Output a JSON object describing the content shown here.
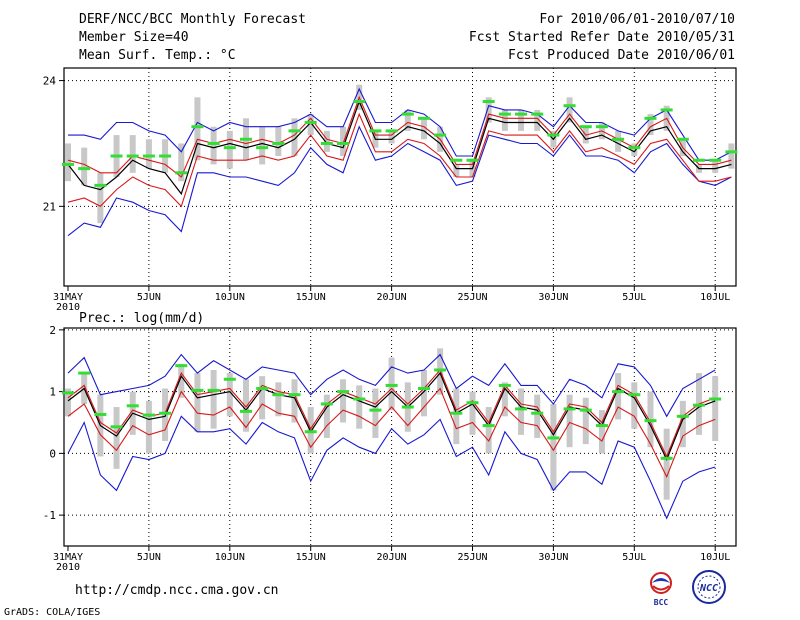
{
  "header": {
    "title": "DERF/NCC/BCC Monthly Forecast",
    "member_size": "Member Size=40",
    "variable": "Mean Surf. Temp.: °C",
    "period": "For 2010/06/01-2010/07/10",
    "started": "Fcst Started Refer Date 2010/05/31",
    "produced": "Fcst Produced Date 2010/06/01"
  },
  "footer": {
    "url": "http://cmdp.ncc.cma.gov.cn",
    "grads": "GrADS: COLA/IGES",
    "logo_bcc": "BCC",
    "logo_ncc": "NCC"
  },
  "colors": {
    "ensemble_mean": "#000000",
    "inner_bounds": "#d81818",
    "outer_bounds": "#1818d0",
    "members": "#c8c8c8",
    "marker": "#33dd33"
  },
  "chart_data": [
    {
      "type": "line",
      "title": "Mean Surf. Temp.: °C",
      "ylabel": "°C",
      "ylim": [
        19.1,
        24.3
      ],
      "yticks": [
        21,
        24
      ],
      "ytick_labels": [
        "21",
        "24"
      ],
      "x_tick_days": [
        0,
        5,
        10,
        15,
        20,
        25,
        30,
        35,
        40
      ],
      "x_tick_labels": [
        "31MAY",
        "5JUN",
        "10JUN",
        "15JUN",
        "20JUN",
        "25JUN",
        "30JUN",
        "5JUL",
        "10JUL"
      ],
      "x_sublabel": "2010",
      "series": [
        {
          "name": "mean",
          "values": [
            22.0,
            21.5,
            21.4,
            21.7,
            22.1,
            21.9,
            21.8,
            21.3,
            22.5,
            22.4,
            22.5,
            22.4,
            22.5,
            22.4,
            22.6,
            23.0,
            22.5,
            22.4,
            23.5,
            22.6,
            22.6,
            22.9,
            22.8,
            22.5,
            21.9,
            21.9,
            23.1,
            23.0,
            23.0,
            23.0,
            22.6,
            23.1,
            22.6,
            22.7,
            22.5,
            22.3,
            22.8,
            22.9,
            22.3,
            21.9,
            21.9,
            22.0
          ]
        },
        {
          "name": "inner_upper",
          "values": [
            22.1,
            22.0,
            21.8,
            21.8,
            22.2,
            22.1,
            22.0,
            21.7,
            22.6,
            22.5,
            22.6,
            22.5,
            22.6,
            22.5,
            22.7,
            23.1,
            22.6,
            22.5,
            23.6,
            22.7,
            22.7,
            23.0,
            22.9,
            22.6,
            22.0,
            22.0,
            23.2,
            23.1,
            23.1,
            23.1,
            22.7,
            23.2,
            22.7,
            22.8,
            22.6,
            22.4,
            22.9,
            23.1,
            22.4,
            22.0,
            22.0,
            22.1
          ]
        },
        {
          "name": "inner_lower",
          "values": [
            21.1,
            21.2,
            21.0,
            21.4,
            21.7,
            21.5,
            21.4,
            21.0,
            22.2,
            22.1,
            22.1,
            22.1,
            22.2,
            22.1,
            22.2,
            22.7,
            22.2,
            22.1,
            23.2,
            22.3,
            22.3,
            22.6,
            22.5,
            22.2,
            21.7,
            21.7,
            22.8,
            22.7,
            22.7,
            22.7,
            22.3,
            22.8,
            22.3,
            22.4,
            22.2,
            22.0,
            22.5,
            22.6,
            22.1,
            21.6,
            21.6,
            21.7
          ]
        },
        {
          "name": "outer_upper",
          "values": [
            22.7,
            22.7,
            22.6,
            23.0,
            23.0,
            22.8,
            22.7,
            22.3,
            23.0,
            22.8,
            23.0,
            22.9,
            22.9,
            22.9,
            23.0,
            23.2,
            22.9,
            22.9,
            23.8,
            23.0,
            23.0,
            23.3,
            23.2,
            22.9,
            22.2,
            22.2,
            23.4,
            23.3,
            23.3,
            23.2,
            22.9,
            23.4,
            23.0,
            23.0,
            22.8,
            22.7,
            23.1,
            23.3,
            22.7,
            22.1,
            22.1,
            22.3
          ]
        },
        {
          "name": "outer_lower",
          "values": [
            20.3,
            20.6,
            20.5,
            21.2,
            21.1,
            20.9,
            20.8,
            20.4,
            21.8,
            21.8,
            21.7,
            21.7,
            21.6,
            21.5,
            21.8,
            22.4,
            22.0,
            21.8,
            22.9,
            22.1,
            22.2,
            22.5,
            22.3,
            22.1,
            21.5,
            21.6,
            22.7,
            22.6,
            22.5,
            22.5,
            22.2,
            22.7,
            22.2,
            22.2,
            22.1,
            21.8,
            22.3,
            22.5,
            22.0,
            21.6,
            21.5,
            21.7
          ]
        }
      ],
      "member_range": [
        [
          21.6,
          22.5
        ],
        [
          21.5,
          22.4
        ],
        [
          20.6,
          21.8
        ],
        [
          21.7,
          22.7
        ],
        [
          21.8,
          22.7
        ],
        [
          21.9,
          22.6
        ],
        [
          21.8,
          22.6
        ],
        [
          21.6,
          22.5
        ],
        [
          22.1,
          23.6
        ],
        [
          22.0,
          22.9
        ],
        [
          21.9,
          22.8
        ],
        [
          22.1,
          23.1
        ],
        [
          22.0,
          22.9
        ],
        [
          22.2,
          22.9
        ],
        [
          22.2,
          23.1
        ],
        [
          22.7,
          23.2
        ],
        [
          22.3,
          22.8
        ],
        [
          22.2,
          22.9
        ],
        [
          23.3,
          23.9
        ],
        [
          22.4,
          22.8
        ],
        [
          22.5,
          22.8
        ],
        [
          22.8,
          23.3
        ],
        [
          22.6,
          23.1
        ],
        [
          22.3,
          22.9
        ],
        [
          21.7,
          22.0
        ],
        [
          21.7,
          22.1
        ],
        [
          23.0,
          23.6
        ],
        [
          22.8,
          23.3
        ],
        [
          22.8,
          23.3
        ],
        [
          22.8,
          23.3
        ],
        [
          22.4,
          22.8
        ],
        [
          23.0,
          23.6
        ],
        [
          22.5,
          22.9
        ],
        [
          22.6,
          23.0
        ],
        [
          22.3,
          22.8
        ],
        [
          22.2,
          22.5
        ],
        [
          22.7,
          23.2
        ],
        [
          22.8,
          23.4
        ],
        [
          22.2,
          22.6
        ],
        [
          21.8,
          22.0
        ],
        [
          21.8,
          22.1
        ],
        [
          21.9,
          22.5
        ]
      ],
      "markers": [
        22.0,
        21.9,
        21.5,
        22.2,
        22.2,
        22.2,
        22.2,
        21.8,
        22.9,
        22.5,
        22.4,
        22.6,
        22.4,
        22.5,
        22.8,
        23.0,
        22.5,
        22.5,
        23.5,
        22.8,
        22.8,
        23.2,
        23.1,
        22.7,
        22.1,
        22.1,
        23.5,
        23.2,
        23.2,
        23.2,
        22.7,
        23.4,
        22.9,
        22.9,
        22.6,
        22.4,
        23.1,
        23.3,
        22.6,
        22.1,
        22.1,
        22.3
      ]
    },
    {
      "type": "line",
      "title": "Prec.: log(mm/d)",
      "ylabel": "log(mm/d)",
      "ylim": [
        -1.5,
        2.03
      ],
      "yticks": [
        -1,
        0,
        1,
        2
      ],
      "ytick_labels": [
        "-1",
        "0",
        "1",
        "2"
      ],
      "x_tick_days": [
        0,
        5,
        10,
        15,
        20,
        25,
        30,
        35,
        40
      ],
      "x_tick_labels": [
        "31MAY",
        "5JUN",
        "10JUN",
        "15JUN",
        "20JUN",
        "25JUN",
        "30JUN",
        "5JUL",
        "10JUL"
      ],
      "x_sublabel": "2010",
      "series": [
        {
          "name": "mean",
          "values": [
            0.85,
            1.05,
            0.45,
            0.28,
            0.65,
            0.55,
            0.6,
            1.25,
            0.9,
            0.95,
            1.0,
            0.7,
            1.05,
            0.95,
            0.9,
            0.35,
            0.75,
            0.95,
            0.85,
            0.75,
            1.0,
            0.75,
            1.0,
            1.3,
            0.65,
            0.8,
            0.45,
            1.05,
            0.75,
            0.7,
            0.3,
            0.75,
            0.7,
            0.45,
            1.05,
            0.9,
            0.45,
            -0.1,
            0.55,
            0.75,
            0.85
          ]
        },
        {
          "name": "inner_upper",
          "values": [
            0.9,
            1.1,
            0.5,
            0.33,
            0.7,
            0.6,
            0.65,
            1.3,
            0.95,
            1.0,
            1.05,
            0.75,
            1.1,
            1.0,
            0.95,
            0.4,
            0.8,
            1.0,
            0.9,
            0.8,
            1.05,
            0.8,
            1.05,
            1.35,
            0.7,
            0.85,
            0.5,
            1.1,
            0.8,
            0.75,
            0.35,
            0.8,
            0.75,
            0.5,
            1.1,
            0.95,
            0.5,
            -0.05,
            0.6,
            0.8,
            0.9
          ]
        },
        {
          "name": "inner_lower",
          "values": [
            0.6,
            0.8,
            0.3,
            0.05,
            0.45,
            0.3,
            0.38,
            1.0,
            0.65,
            0.62,
            0.75,
            0.42,
            0.8,
            0.65,
            0.6,
            0.1,
            0.45,
            0.7,
            0.6,
            0.45,
            0.75,
            0.45,
            0.75,
            1.05,
            0.4,
            0.5,
            0.2,
            0.75,
            0.5,
            0.45,
            0.05,
            0.5,
            0.4,
            0.2,
            0.75,
            0.6,
            0.15,
            -0.38,
            0.28,
            0.45,
            0.55
          ]
        },
        {
          "name": "outer_upper",
          "values": [
            1.3,
            1.55,
            0.95,
            1.0,
            1.05,
            1.1,
            1.25,
            1.6,
            1.3,
            1.5,
            1.35,
            1.2,
            1.4,
            1.35,
            1.3,
            0.95,
            1.2,
            1.35,
            1.2,
            1.1,
            1.4,
            1.3,
            1.35,
            1.6,
            1.05,
            1.25,
            1.1,
            1.45,
            1.1,
            1.1,
            0.8,
            1.2,
            1.1,
            0.9,
            1.45,
            1.4,
            1.1,
            0.6,
            1.05,
            1.2,
            1.35
          ]
        },
        {
          "name": "outer_lower",
          "values": [
            0.0,
            0.5,
            -0.35,
            -0.6,
            -0.05,
            -0.1,
            0.0,
            0.6,
            0.35,
            0.35,
            0.4,
            0.15,
            0.5,
            0.35,
            0.25,
            -0.45,
            0.05,
            0.25,
            0.1,
            0.0,
            0.4,
            0.15,
            0.3,
            0.55,
            -0.05,
            0.1,
            -0.35,
            0.35,
            0.0,
            -0.1,
            -0.6,
            -0.3,
            -0.3,
            -0.5,
            0.2,
            0.1,
            -0.45,
            -1.05,
            -0.45,
            -0.3,
            -0.22
          ]
        }
      ],
      "member_range": [
        [
          0.6,
          1.05
        ],
        [
          0.8,
          1.3
        ],
        [
          -0.05,
          0.95
        ],
        [
          -0.25,
          0.75
        ],
        [
          0.3,
          1.0
        ],
        [
          0.0,
          0.85
        ],
        [
          0.2,
          1.05
        ],
        [
          0.9,
          1.45
        ],
        [
          0.35,
          1.3
        ],
        [
          0.4,
          1.35
        ],
        [
          0.6,
          1.3
        ],
        [
          0.35,
          1.2
        ],
        [
          0.55,
          1.25
        ],
        [
          0.6,
          1.15
        ],
        [
          0.5,
          1.2
        ],
        [
          0.0,
          0.75
        ],
        [
          0.25,
          0.95
        ],
        [
          0.5,
          1.2
        ],
        [
          0.4,
          1.1
        ],
        [
          0.25,
          1.05
        ],
        [
          0.7,
          1.55
        ],
        [
          0.35,
          1.15
        ],
        [
          0.6,
          1.35
        ],
        [
          0.95,
          1.7
        ],
        [
          0.15,
          1.05
        ],
        [
          0.3,
          1.0
        ],
        [
          0.0,
          0.75
        ],
        [
          0.6,
          1.15
        ],
        [
          0.3,
          1.05
        ],
        [
          0.25,
          0.95
        ],
        [
          -0.6,
          0.8
        ],
        [
          0.1,
          0.95
        ],
        [
          0.15,
          0.9
        ],
        [
          0.0,
          0.7
        ],
        [
          0.55,
          1.3
        ],
        [
          0.4,
          1.15
        ],
        [
          0.1,
          1.0
        ],
        [
          -0.75,
          0.4
        ],
        [
          0.1,
          0.85
        ],
        [
          0.3,
          1.3
        ],
        [
          0.2,
          1.25
        ]
      ],
      "markers": [
        0.98,
        1.3,
        0.63,
        0.43,
        0.77,
        0.62,
        0.65,
        1.42,
        1.02,
        1.02,
        1.2,
        0.68,
        1.05,
        0.95,
        0.95,
        0.35,
        0.8,
        1.0,
        0.88,
        0.7,
        1.1,
        0.75,
        1.05,
        1.35,
        0.65,
        0.82,
        0.45,
        1.1,
        0.72,
        0.65,
        0.25,
        0.72,
        0.7,
        0.45,
        1.0,
        0.95,
        0.53,
        -0.08,
        0.6,
        0.78,
        0.88
      ]
    }
  ]
}
